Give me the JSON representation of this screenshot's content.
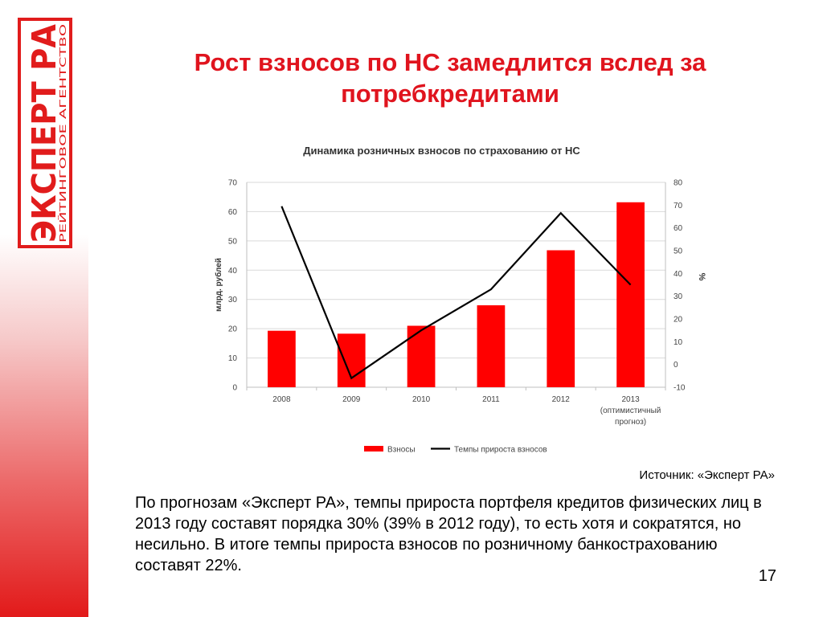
{
  "logo": {
    "brand": "ЭКСПЕРТ РА",
    "subtitle": "РЕЙТИНГОВОЕ АГЕНТСТВО",
    "color": "#e11c1c"
  },
  "slide": {
    "title_line1": "Рост взносов по НС замедлится вслед за",
    "title_line2": "потребкредитами",
    "source": "Источник: «Эксперт РА»",
    "body": "По прогнозам «Эксперт РА», темпы прироста портфеля кредитов физических лиц в 2013 году составят порядка 30% (39% в 2012 году), то есть хотя и сократятся, но несильно. В итоге темпы прироста взносов по розничному банкострахованию составят 22%.",
    "page_number": "17"
  },
  "chart_data": {
    "type": "bar",
    "title": "Динамика розничных взносов по страхованию от НС",
    "categories": [
      "2008",
      "2009",
      "2010",
      "2011",
      "2012",
      "2013"
    ],
    "category_sublabels": [
      "",
      "",
      "",
      "",
      "",
      "(оптимистичный прогноз)"
    ],
    "category_sublabel_lines": [
      "(оптимистичный",
      "прогноз)"
    ],
    "series": [
      {
        "name": "Взносы",
        "type": "bar",
        "axis": "left",
        "color": "#ff0000",
        "values": [
          19.3,
          18.3,
          21,
          28,
          46.8,
          63.2
        ]
      },
      {
        "name": "Темпы прироста взносов",
        "type": "line",
        "axis": "right",
        "color": "#000000",
        "values": [
          69.5,
          -6,
          15,
          33,
          66.5,
          35
        ]
      }
    ],
    "ylabel": "млрд. рублей",
    "ylim": [
      0,
      70
    ],
    "yticks": [
      "0",
      "10",
      "20",
      "30",
      "40",
      "50",
      "60",
      "70"
    ],
    "y2label": "%",
    "y2lim": [
      -10,
      80
    ],
    "y2ticks": [
      "-10",
      "0",
      "10",
      "20",
      "30",
      "40",
      "50",
      "60",
      "70",
      "80"
    ],
    "grid": true,
    "legend": "bottom"
  }
}
